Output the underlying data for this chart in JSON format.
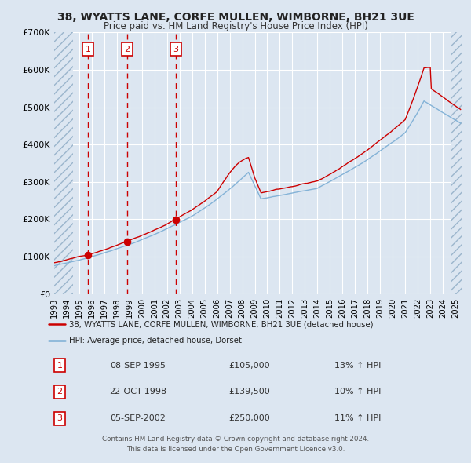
{
  "title": "38, WYATTS LANE, CORFE MULLEN, WIMBORNE, BH21 3UE",
  "subtitle": "Price paid vs. HM Land Registry's House Price Index (HPI)",
  "legend_line1": "38, WYATTS LANE, CORFE MULLEN, WIMBORNE, BH21 3UE (detached house)",
  "legend_line2": "HPI: Average price, detached house, Dorset",
  "red_color": "#cc0000",
  "blue_color": "#7aadd4",
  "bg_color": "#dce6f1",
  "plot_bg_color": "#dce6f1",
  "grid_color": "#ffffff",
  "sales": [
    {
      "num": 1,
      "date": "08-SEP-1995",
      "price": 105000,
      "pct": "13%",
      "x_year": 1995.69
    },
    {
      "num": 2,
      "date": "22-OCT-1998",
      "price": 139500,
      "pct": "10%",
      "x_year": 1998.81
    },
    {
      "num": 3,
      "date": "05-SEP-2002",
      "price": 250000,
      "pct": "11%",
      "x_year": 2002.68
    }
  ],
  "ylim": [
    0,
    700000
  ],
  "yticks": [
    0,
    100000,
    200000,
    300000,
    400000,
    500000,
    600000,
    700000
  ],
  "xlim_start": 1993.0,
  "xlim_end": 2025.5,
  "hatch_left_end": 1994.5,
  "hatch_right_start": 2024.67,
  "footer1": "Contains HM Land Registry data © Crown copyright and database right 2024.",
  "footer2": "This data is licensed under the Open Government Licence v3.0.",
  "rows": [
    {
      "num": "1",
      "date": "08-SEP-1995",
      "price": "£105,000",
      "pct": "13% ↑ HPI"
    },
    {
      "num": "2",
      "date": "22-OCT-1998",
      "price": "£139,500",
      "pct": "10% ↑ HPI"
    },
    {
      "num": "3",
      "date": "05-SEP-2002",
      "price": "£250,000",
      "pct": "11% ↑ HPI"
    }
  ]
}
